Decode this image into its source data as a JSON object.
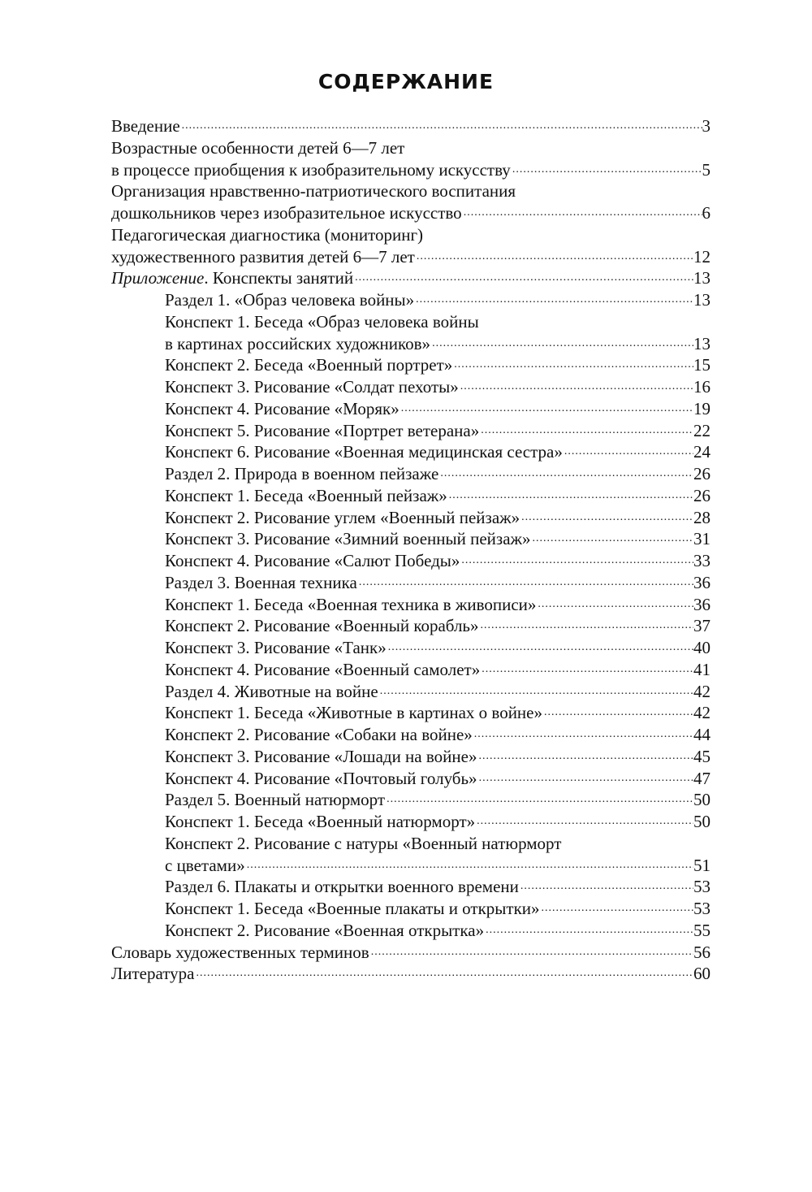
{
  "title": "СОДЕРЖАНИЕ",
  "entries": [
    {
      "indent": false,
      "lines": [
        "Введение"
      ],
      "page": "3"
    },
    {
      "indent": false,
      "lines": [
        "Возрастные особенности детей 6—7 лет",
        "в процессе приобщения к изобразительному искусству"
      ],
      "page": "5"
    },
    {
      "indent": false,
      "lines": [
        "Организация нравственно-патриотического воспитания",
        "дошкольников через изобразительное искусство"
      ],
      "page": "6"
    },
    {
      "indent": false,
      "lines": [
        "Педагогическая диагностика (мониторинг)",
        "художественного развития детей 6—7 лет"
      ],
      "page": "12"
    },
    {
      "indent": false,
      "italic_prefix": "Приложение",
      "lines": [
        ". Конспекты занятий"
      ],
      "page": "13"
    },
    {
      "indent": true,
      "lines": [
        "Раздел 1. «Образ человека войны»"
      ],
      "page": "13"
    },
    {
      "indent": true,
      "lines": [
        "Конспект 1. Беседа «Образ человека войны",
        "в картинах российских художников»"
      ],
      "page": "13"
    },
    {
      "indent": true,
      "lines": [
        "Конспект 2. Беседа «Военный портрет»"
      ],
      "page": "15"
    },
    {
      "indent": true,
      "lines": [
        "Конспект 3. Рисование «Солдат пехоты»"
      ],
      "page": "16"
    },
    {
      "indent": true,
      "lines": [
        "Конспект 4. Рисование «Моряк»"
      ],
      "page": "19"
    },
    {
      "indent": true,
      "lines": [
        "Конспект 5. Рисование «Портрет ветерана»"
      ],
      "page": "22"
    },
    {
      "indent": true,
      "lines": [
        "Конспект 6. Рисование «Военная медицинская сестра»"
      ],
      "page": "24"
    },
    {
      "indent": true,
      "lines": [
        "Раздел 2. Природа в военном пейзаже"
      ],
      "page": "26"
    },
    {
      "indent": true,
      "lines": [
        "Конспект 1. Беседа «Военный пейзаж»"
      ],
      "page": "26"
    },
    {
      "indent": true,
      "lines": [
        "Конспект 2. Рисование углем «Военный пейзаж»"
      ],
      "page": "28"
    },
    {
      "indent": true,
      "lines": [
        "Конспект 3. Рисование «Зимний военный пейзаж»"
      ],
      "page": "31"
    },
    {
      "indent": true,
      "lines": [
        "Конспект 4. Рисование «Салют Победы»"
      ],
      "page": "33"
    },
    {
      "indent": true,
      "lines": [
        "Раздел 3. Военная техника"
      ],
      "page": "36"
    },
    {
      "indent": true,
      "lines": [
        "Конспект 1. Беседа «Военная техника в живописи»"
      ],
      "page": "36"
    },
    {
      "indent": true,
      "lines": [
        "Конспект 2. Рисование «Военный корабль»"
      ],
      "page": "37"
    },
    {
      "indent": true,
      "lines": [
        "Конспект 3. Рисование «Танк»"
      ],
      "page": "40"
    },
    {
      "indent": true,
      "lines": [
        "Конспект 4. Рисование «Военный самолет»"
      ],
      "page": "41"
    },
    {
      "indent": true,
      "lines": [
        "Раздел 4. Животные на войне"
      ],
      "page": "42"
    },
    {
      "indent": true,
      "lines": [
        "Конспект 1. Беседа «Животные в картинах о войне»"
      ],
      "page": "42"
    },
    {
      "indent": true,
      "lines": [
        "Конспект 2. Рисование «Собаки на войне»"
      ],
      "page": "44"
    },
    {
      "indent": true,
      "lines": [
        "Конспект 3. Рисование «Лошади на войне»"
      ],
      "page": "45"
    },
    {
      "indent": true,
      "lines": [
        "Конспект 4. Рисование «Почтовый голубь»"
      ],
      "page": "47"
    },
    {
      "indent": true,
      "lines": [
        "Раздел 5. Военный натюрморт"
      ],
      "page": "50"
    },
    {
      "indent": true,
      "lines": [
        "Конспект 1. Беседа «Военный натюрморт»"
      ],
      "page": "50"
    },
    {
      "indent": true,
      "lines": [
        "Конспект 2. Рисование с натуры «Военный натюрморт",
        "с цветами»"
      ],
      "page": "51"
    },
    {
      "indent": true,
      "lines": [
        "Раздел 6. Плакаты и открытки военного времени"
      ],
      "page": "53"
    },
    {
      "indent": true,
      "lines": [
        "Конспект 1. Беседа «Военные плакаты и открытки»"
      ],
      "page": "53"
    },
    {
      "indent": true,
      "lines": [
        "Конспект 2. Рисование «Военная открытка»"
      ],
      "page": "55"
    },
    {
      "indent": false,
      "lines": [
        "Словарь художественных терминов"
      ],
      "page": "56"
    },
    {
      "indent": false,
      "lines": [
        "Литература"
      ],
      "page": "60"
    }
  ]
}
